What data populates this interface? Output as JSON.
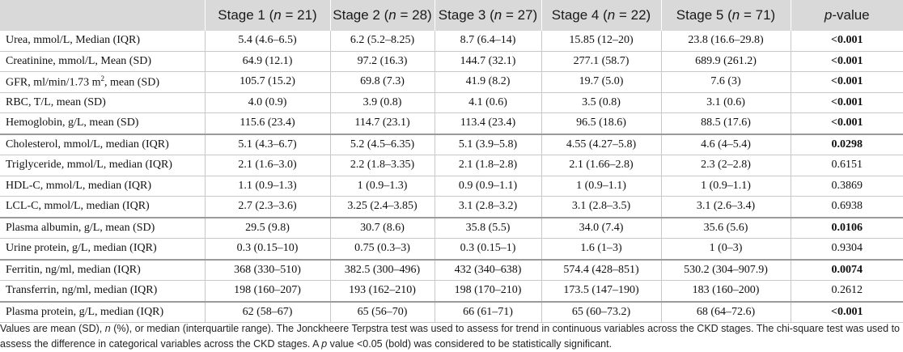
{
  "headers": [
    "",
    "Stage 1 (n = 21)",
    "Stage 2 (n = 28)",
    "Stage 3 (n = 27)",
    "Stage 4 (n = 22)",
    "Stage 5 (n = 71)",
    "p-value"
  ],
  "header_parts": [
    {
      "pre": "Stage 1 (",
      "n": "n",
      "post": " = 21)"
    },
    {
      "pre": "Stage 2 (",
      "n": "n",
      "post": " = 28)"
    },
    {
      "pre": "Stage 3 (",
      "n": "n",
      "post": " = 27)"
    },
    {
      "pre": "Stage 4 (",
      "n": "n",
      "post": " = 22)"
    },
    {
      "pre": "Stage 5 (",
      "n": "n",
      "post": " = 71)"
    }
  ],
  "pvalue_header": {
    "p": "p",
    "rest": "-value"
  },
  "rows": [
    {
      "label": "Urea, mmol/L, Median (IQR)",
      "values": [
        "5.4 (4.6–6.5)",
        "6.2 (5.2–8.25)",
        "8.7 (6.4–14)",
        "15.85 (12–20)",
        "23.8 (16.6–29.8)"
      ],
      "p": "<0.001",
      "bold": true,
      "group_end": false
    },
    {
      "label": "Creatinine, mmol/L, Mean (SD)",
      "values": [
        "64.9 (12.1)",
        "97.2 (16.3)",
        "144.7 (32.1)",
        "277.1 (58.7)",
        "689.9 (261.2)"
      ],
      "p": "<0.001",
      "bold": true,
      "group_end": false
    },
    {
      "label_pre": "GFR, ml/min/1.73 m",
      "label_sup": "2",
      "label_post": ", mean (SD)",
      "values": [
        "105.7 (15.2)",
        "69.8 (7.3)",
        "41.9 (8.2)",
        "19.7 (5.0)",
        "7.6 (3)"
      ],
      "p": "<0.001",
      "bold": true,
      "group_end": false
    },
    {
      "label": "RBC, T/L, mean (SD)",
      "values": [
        "4.0 (0.9)",
        "3.9 (0.8)",
        "4.1 (0.6)",
        "3.5 (0.8)",
        "3.1 (0.6)"
      ],
      "p": "<0.001",
      "bold": true,
      "group_end": false
    },
    {
      "label": "Hemoglobin, g/L, mean (SD)",
      "values": [
        "115.6 (23.4)",
        "114.7 (23.1)",
        "113.4 (23.4)",
        "96.5 (18.6)",
        "88.5 (17.6)"
      ],
      "p": "<0.001",
      "bold": true,
      "group_end": true
    },
    {
      "label": "Cholesterol, mmol/L, median (IQR)",
      "values": [
        "5.1 (4.3–6.7)",
        "5.2 (4.5–6.35)",
        "5.1 (3.9–5.8)",
        "4.55 (4.27–5.8)",
        "4.6 (4–5.4)"
      ],
      "p": "0.0298",
      "bold": true,
      "group_end": false
    },
    {
      "label": "Triglyceride, mmol/L, median (IQR)",
      "values": [
        "2.1 (1.6–3.0)",
        "2.2 (1.8–3.35)",
        "2.1 (1.8–2.8)",
        "2.1 (1.66–2.8)",
        "2.3 (2–2.8)"
      ],
      "p": "0.6151",
      "bold": false,
      "group_end": false
    },
    {
      "label": "HDL-C, mmol/L, median (IQR)",
      "values": [
        "1.1 (0.9–1.3)",
        "1 (0.9–1.3)",
        "0.9 (0.9–1.1)",
        "1 (0.9–1.1)",
        "1 (0.9–1.1)"
      ],
      "p": "0.3869",
      "bold": false,
      "group_end": false
    },
    {
      "label": "LCL-C, mmol/L, median (IQR)",
      "values": [
        "2.7 (2.3–3.6)",
        "3.25 (2.4–3.85)",
        "3.1 (2.8–3.2)",
        "3.1 (2.8–3.5)",
        "3.1 (2.6–3.4)"
      ],
      "p": "0.6938",
      "bold": false,
      "group_end": true
    },
    {
      "label": "Plasma albumin, g/L, mean (SD)",
      "values": [
        "29.5 (9.8)",
        "30.7 (8.6)",
        "35.8 (5.5)",
        "34.0 (7.4)",
        "35.6 (5.6)"
      ],
      "p": "0.0106",
      "bold": true,
      "group_end": false
    },
    {
      "label": "Urine protein, g/L, median (IQR)",
      "values": [
        "0.3 (0.15–10)",
        "0.75 (0.3–3)",
        "0.3 (0.15–1)",
        "1.6 (1–3)",
        "1 (0–3)"
      ],
      "p": "0.9304",
      "bold": false,
      "group_end": true
    },
    {
      "label": "Ferritin, ng/ml, median (IQR)",
      "values": [
        "368 (330–510)",
        "382.5 (300–496)",
        "432 (340–638)",
        "574.4 (428–851)",
        "530.2 (304–907.9)"
      ],
      "p": "0.0074",
      "bold": true,
      "group_end": false
    },
    {
      "label": "Transferrin, ng/ml, median (IQR)",
      "values": [
        "198 (160–207)",
        "193 (162–210)",
        "198 (170–210)",
        "173.5 (147–190)",
        "183 (160–200)"
      ],
      "p": "0.2612",
      "bold": false,
      "group_end": true
    },
    {
      "label": "Plasma protein, g/L, median (IQR)",
      "values": [
        "62 (58–67)",
        "65 (56–70)",
        "66 (61–71)",
        "65 (60–73.2)",
        "68 (64–72.6)"
      ],
      "p": "<0.001",
      "bold": true,
      "group_end": false
    }
  ],
  "footnote": {
    "pre": "Values are mean (SD), ",
    "n": "n",
    "mid1": " (%), or median (interquartile range). The Jonckheere Terpstra test was used to assess for trend in continuous variables across the CKD stages. The chi-square test was used to assess the difference in categorical variables across the CKD stages. A ",
    "p": "p",
    "post": " value <0.05 (bold) was considered to be statistically significant."
  }
}
